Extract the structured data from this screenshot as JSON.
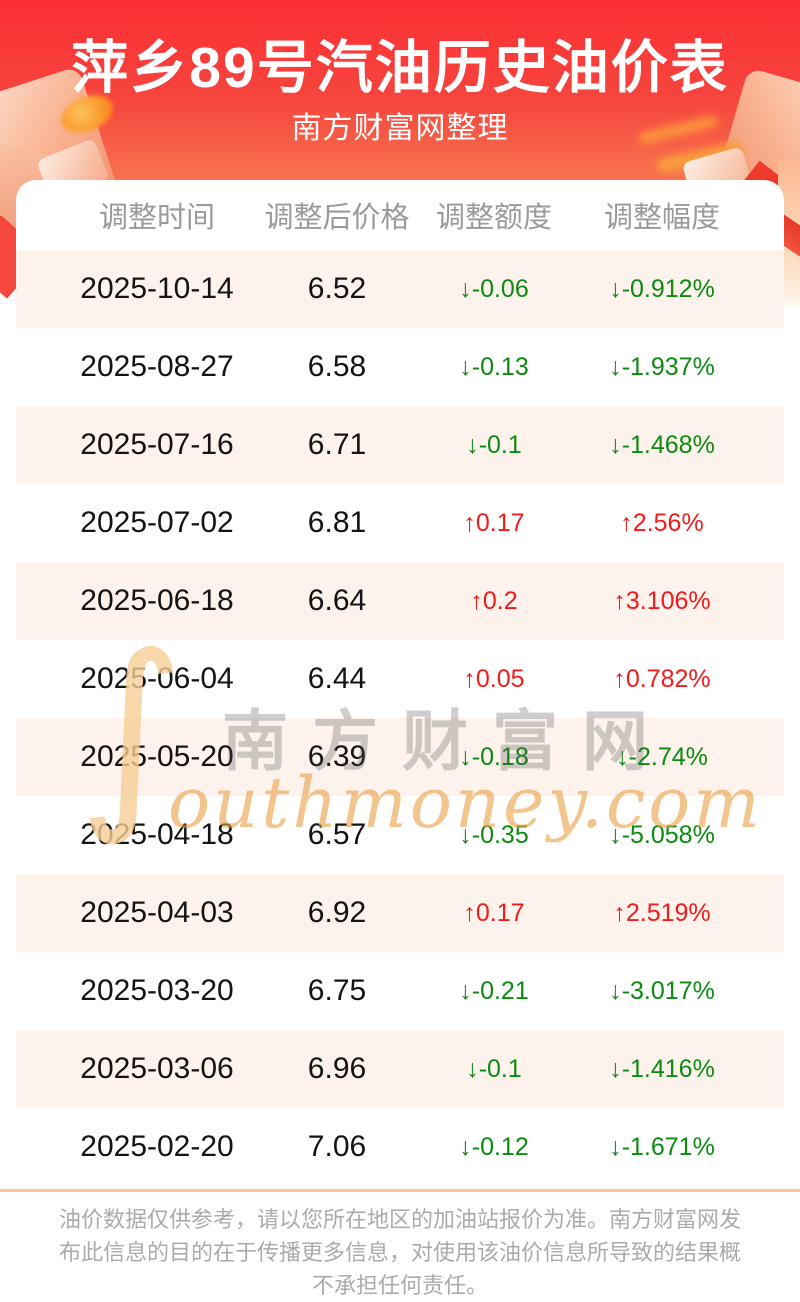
{
  "header": {
    "title": "萍乡89号汽油历史油价表",
    "subtitle": "南方财富网整理"
  },
  "table": {
    "columns": [
      "调整时间",
      "调整后价格",
      "调整额度",
      "调整幅度"
    ],
    "rows": [
      {
        "date": "2025-10-14",
        "price": "6.52",
        "change": "↓-0.06",
        "pct": "↓-0.912%",
        "dir": "down"
      },
      {
        "date": "2025-08-27",
        "price": "6.58",
        "change": "↓-0.13",
        "pct": "↓-1.937%",
        "dir": "down"
      },
      {
        "date": "2025-07-16",
        "price": "6.71",
        "change": "↓-0.1",
        "pct": "↓-1.468%",
        "dir": "down"
      },
      {
        "date": "2025-07-02",
        "price": "6.81",
        "change": "↑0.17",
        "pct": "↑2.56%",
        "dir": "up"
      },
      {
        "date": "2025-06-18",
        "price": "6.64",
        "change": "↑0.2",
        "pct": "↑3.106%",
        "dir": "up"
      },
      {
        "date": "2025-06-04",
        "price": "6.44",
        "change": "↑0.05",
        "pct": "↑0.782%",
        "dir": "up"
      },
      {
        "date": "2025-05-20",
        "price": "6.39",
        "change": "↓-0.18",
        "pct": "↓-2.74%",
        "dir": "down"
      },
      {
        "date": "2025-04-18",
        "price": "6.57",
        "change": "↓-0.35",
        "pct": "↓-5.058%",
        "dir": "down"
      },
      {
        "date": "2025-04-03",
        "price": "6.92",
        "change": "↑0.17",
        "pct": "↑2.519%",
        "dir": "up"
      },
      {
        "date": "2025-03-20",
        "price": "6.75",
        "change": "↓-0.21",
        "pct": "↓-3.017%",
        "dir": "down"
      },
      {
        "date": "2025-03-06",
        "price": "6.96",
        "change": "↓-0.1",
        "pct": "↓-1.416%",
        "dir": "down"
      },
      {
        "date": "2025-02-20",
        "price": "7.06",
        "change": "↓-0.12",
        "pct": "↓-1.671%",
        "dir": "down"
      }
    ]
  },
  "watermark": {
    "swash": "∫",
    "cn": "南方财富网",
    "en": "outhmoney.com"
  },
  "footer": {
    "disclaimer": "油价数据仅供参考，请以您所在地区的加油站报价为准。南方财富网发布此信息的目的在于传播更多信息，对使用该油价信息所导致的结果概不承担任何责任。"
  },
  "colors": {
    "up": "#f21b1b",
    "down": "#0c8b10",
    "separator": "#f7c98d",
    "hero_top": "#fc2e34",
    "hero_bottom": "#fbc198",
    "stripe": "#fdf3ec"
  }
}
